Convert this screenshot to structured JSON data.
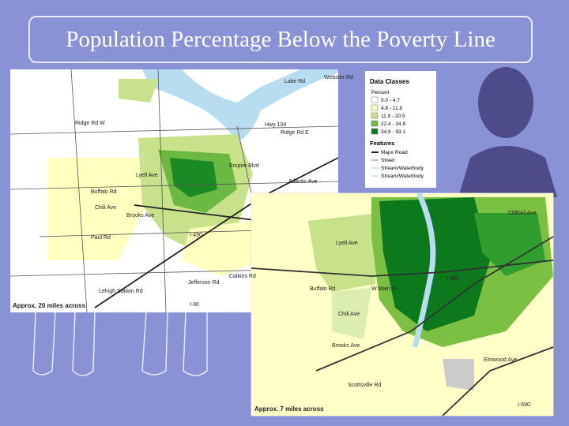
{
  "header": {
    "title": "Population Percentage Below the Poverty Line"
  },
  "legend": {
    "title": "Data Classes",
    "unit": "Percent",
    "classes": [
      "0.0 - 4.7",
      "4.8 - 11.8",
      "11.9 - 20.5",
      "22.4 - 34.8",
      "34.9 - 59.1"
    ],
    "features_title": "Features",
    "features": [
      "Major Road",
      "Street",
      "Stream/Waterbody",
      "Stream/Waterbody"
    ]
  },
  "map_regional": {
    "caption": "Approx. 20 miles across",
    "labels": [
      "Lake Rd",
      "Hwy 104",
      "Ridge Rd W",
      "Ridge Rd E",
      "Empire Blvd",
      "Buffalo Rd",
      "Lyell Ave",
      "Chili Ave",
      "Paul Rd",
      "Brooks Ave",
      "Jefferson Rd",
      "I-490",
      "I-90",
      "Lehigh Station Rd",
      "Calkins Rd",
      "Atlantic Ave",
      "Webster Rd"
    ]
  },
  "map_city": {
    "caption": "Approx. 7 miles across",
    "labels": [
      "Lyell Ave",
      "Buffalo Rd",
      "W Main St",
      "Brooks Ave",
      "Clifford Ave",
      "Elmwood Ave",
      "I-490",
      "I-590",
      "Chili Ave",
      "Scottsville Rd"
    ]
  }
}
